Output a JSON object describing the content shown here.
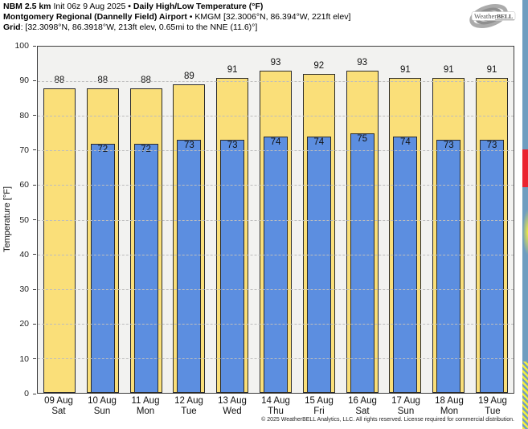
{
  "header": {
    "line1": {
      "model": "NBM 2.5 km",
      "init": " Init 06z 9 Aug 2025 ",
      "sep": "•",
      "title": " Daily High/Low Temperature (°F)"
    },
    "line2": {
      "station": "Montgomery Regional (Dannelly Field) Airport",
      "sep": " • ",
      "details": "KMGM [32.3006°N, 86.394°W, 221ft elev]"
    },
    "line3": {
      "label": "Grid",
      "details": ": [32.3098°N, 86.3918°W, 213ft elev, 0.65mi to the NNE (11.6)°]"
    }
  },
  "logo": {
    "brand_left": "Weather",
    "brand_right": "BELL"
  },
  "chart_data": {
    "type": "bar",
    "title": "Daily High/Low Temperature (°F)",
    "ylabel": "Temperature [°F]",
    "ylim": [
      0,
      100
    ],
    "yticks": [
      0,
      10,
      20,
      30,
      40,
      50,
      60,
      70,
      80,
      90,
      100
    ],
    "grid": "horizontal-dashed",
    "legend": "none",
    "plot_bg": "#f2f2f0",
    "categories": [
      {
        "date": "09 Aug",
        "day": "Sat"
      },
      {
        "date": "10 Aug",
        "day": "Sun"
      },
      {
        "date": "11 Aug",
        "day": "Mon"
      },
      {
        "date": "12 Aug",
        "day": "Tue"
      },
      {
        "date": "13 Aug",
        "day": "Wed"
      },
      {
        "date": "14 Aug",
        "day": "Thu"
      },
      {
        "date": "15 Aug",
        "day": "Fri"
      },
      {
        "date": "16 Aug",
        "day": "Sat"
      },
      {
        "date": "17 Aug",
        "day": "Sun"
      },
      {
        "date": "18 Aug",
        "day": "Mon"
      },
      {
        "date": "19 Aug",
        "day": "Tue"
      }
    ],
    "series": [
      {
        "name": "Daily High",
        "color": "#fadf79",
        "values": [
          88,
          88,
          88,
          89,
          91,
          93,
          92,
          93,
          91,
          91,
          91
        ]
      },
      {
        "name": "Daily Low",
        "color": "#5c8ee0",
        "values": [
          null,
          72,
          72,
          73,
          73,
          74,
          74,
          75,
          74,
          73,
          73
        ]
      }
    ]
  },
  "footer": {
    "copyright": "© 2025 WeatherBELL Analytics, LLC. All rights reserved. License required for commercial distribution."
  },
  "decor": {
    "strip_base": "#6f9dc0",
    "strip_red": "#ea2430",
    "strip_yellow": "#f6ee3c"
  }
}
